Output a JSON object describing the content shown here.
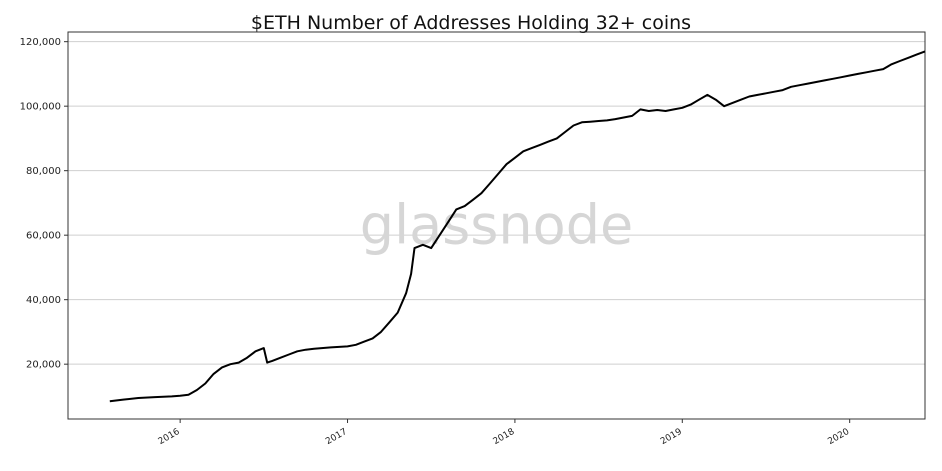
{
  "chart_data": {
    "type": "line",
    "title": "$ETH Number of Addresses Holding 32+ coins",
    "watermark": "glassnode",
    "xlabel": "",
    "ylabel": "",
    "ylim": [
      3000,
      123000
    ],
    "xlim": [
      2015.33,
      2020.45
    ],
    "grid": "horizontal",
    "y_ticks": [
      20000,
      40000,
      60000,
      80000,
      100000,
      120000
    ],
    "y_tick_labels": [
      "20,000",
      "40,000",
      "60,000",
      "80,000",
      "100,000",
      "120,000"
    ],
    "x_ticks": [
      2016,
      2017,
      2018,
      2019,
      2020
    ],
    "x_tick_labels": [
      "2016",
      "2017",
      "2018",
      "2019",
      "2020"
    ],
    "line_color": "#000000",
    "series": [
      {
        "x": [
          2015.58,
          2015.66,
          2015.75,
          2015.85,
          2015.95,
          2016.0,
          2016.05,
          2016.1,
          2016.15,
          2016.2,
          2016.25,
          2016.3,
          2016.35,
          2016.4,
          2016.45,
          2016.5,
          2016.52,
          2016.55,
          2016.6,
          2016.65,
          2016.7,
          2016.75,
          2016.8,
          2016.9,
          2017.0,
          2017.05,
          2017.1,
          2017.15,
          2017.2,
          2017.25,
          2017.3,
          2017.35,
          2017.38,
          2017.4,
          2017.45,
          2017.5,
          2017.55,
          2017.6,
          2017.65,
          2017.7,
          2017.75,
          2017.8,
          2017.85,
          2017.9,
          2017.95,
          2018.0,
          2018.05,
          2018.1,
          2018.15,
          2018.2,
          2018.25,
          2018.3,
          2018.35,
          2018.4,
          2018.45,
          2018.5,
          2018.55,
          2018.6,
          2018.65,
          2018.7,
          2018.75,
          2018.8,
          2018.85,
          2018.9,
          2018.95,
          2019.0,
          2019.05,
          2019.1,
          2019.15,
          2019.2,
          2019.25,
          2019.3,
          2019.35,
          2019.4,
          2019.45,
          2019.5,
          2019.55,
          2019.6,
          2019.65,
          2019.7,
          2019.75,
          2019.8,
          2019.85,
          2019.9,
          2019.95,
          2020.0,
          2020.05,
          2020.1,
          2020.15,
          2020.2,
          2020.25,
          2020.3,
          2020.35,
          2020.4,
          2020.45
        ],
        "values": [
          8500,
          9000,
          9500,
          9800,
          10000,
          10200,
          10500,
          12000,
          14000,
          17000,
          19000,
          20000,
          20500,
          22000,
          24000,
          25000,
          20500,
          21000,
          22000,
          23000,
          24000,
          24500,
          24800,
          25200,
          25500,
          26000,
          27000,
          28000,
          30000,
          33000,
          36000,
          42000,
          48000,
          56000,
          57000,
          56000,
          60000,
          64000,
          68000,
          69000,
          71000,
          73000,
          76000,
          79000,
          82000,
          84000,
          86000,
          87000,
          88000,
          89000,
          90000,
          92000,
          94000,
          95000,
          95200,
          95400,
          95600,
          96000,
          96500,
          97000,
          99000,
          98500,
          98800,
          98500,
          99000,
          99500,
          100500,
          102000,
          103500,
          102000,
          100000,
          101000,
          102000,
          103000,
          103500,
          104000,
          104500,
          105000,
          106000,
          106500,
          107000,
          107500,
          108000,
          108500,
          109000,
          109500,
          110000,
          110500,
          111000,
          111500,
          113000,
          114000,
          115000,
          116000,
          117000
        ]
      }
    ]
  }
}
